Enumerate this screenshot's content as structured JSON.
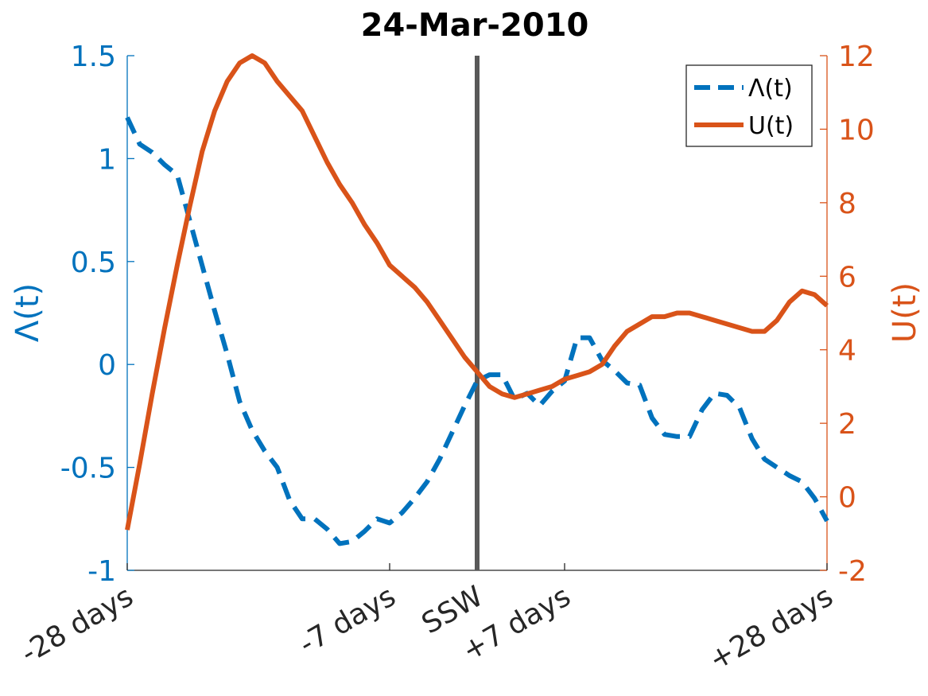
{
  "chart_data": {
    "type": "line",
    "title": "24-Mar-2010",
    "x_ticks": [
      {
        "x": -28,
        "label": "-28 days"
      },
      {
        "x": -7,
        "label": "-7 days"
      },
      {
        "x": 0,
        "label": "SSW"
      },
      {
        "x": 7,
        "label": "+7 days"
      },
      {
        "x": 28,
        "label": "+28 days"
      }
    ],
    "xlim": [
      -28,
      28
    ],
    "y_left": {
      "label": "Λ(t)",
      "lim": [
        -1,
        1.5
      ],
      "ticks": [
        -1,
        -0.5,
        0,
        0.5,
        1,
        1.5
      ],
      "tick_labels": [
        "-1",
        "-0.5",
        "0",
        "0.5",
        "1",
        "1.5"
      ],
      "color": "#0072BD"
    },
    "y_right": {
      "label": "U(t)",
      "lim": [
        -2,
        12
      ],
      "ticks": [
        -2,
        0,
        2,
        4,
        6,
        8,
        10,
        12
      ],
      "tick_labels": [
        "-2",
        "0",
        "2",
        "4",
        "6",
        "8",
        "10",
        "12"
      ],
      "color": "#D95319"
    },
    "vertical_line": {
      "x": 0,
      "color": "#595959"
    },
    "legend_position": "top-right",
    "grid": false,
    "series": [
      {
        "name": "Λ(t)",
        "axis": "left",
        "style": "dashed",
        "color": "#0072BD",
        "x": [
          -28,
          -27,
          -26,
          -25,
          -24,
          -23,
          -22,
          -21,
          -20,
          -19,
          -18,
          -17,
          -16,
          -15,
          -14,
          -13,
          -12,
          -11,
          -10,
          -9,
          -8,
          -7,
          -6,
          -5,
          -4,
          -3,
          -2,
          -1,
          0,
          1,
          2,
          3,
          4,
          5,
          6,
          7,
          8,
          9,
          10,
          11,
          12,
          13,
          14,
          15,
          16,
          17,
          18,
          19,
          20,
          21,
          22,
          23,
          24,
          25,
          26,
          27,
          28
        ],
        "y": [
          1.2,
          1.07,
          1.03,
          0.97,
          0.92,
          0.7,
          0.48,
          0.26,
          0.05,
          -0.18,
          -0.32,
          -0.42,
          -0.5,
          -0.66,
          -0.75,
          -0.75,
          -0.8,
          -0.87,
          -0.86,
          -0.81,
          -0.75,
          -0.77,
          -0.72,
          -0.65,
          -0.57,
          -0.46,
          -0.33,
          -0.2,
          -0.08,
          -0.05,
          -0.05,
          -0.17,
          -0.14,
          -0.2,
          -0.13,
          -0.08,
          0.13,
          0.13,
          0.02,
          -0.03,
          -0.09,
          -0.1,
          -0.26,
          -0.34,
          -0.35,
          -0.35,
          -0.22,
          -0.14,
          -0.15,
          -0.21,
          -0.36,
          -0.46,
          -0.5,
          -0.54,
          -0.57,
          -0.65,
          -0.76
        ]
      },
      {
        "name": "U(t)",
        "axis": "right",
        "style": "solid",
        "color": "#D95319",
        "x": [
          -28,
          -27,
          -26,
          -25,
          -24,
          -23,
          -22,
          -21,
          -20,
          -19,
          -18,
          -17,
          -16,
          -15,
          -14,
          -13,
          -12,
          -11,
          -10,
          -9,
          -8,
          -7,
          -6,
          -5,
          -4,
          -3,
          -2,
          -1,
          0,
          1,
          2,
          3,
          4,
          5,
          6,
          7,
          8,
          9,
          10,
          11,
          12,
          13,
          14,
          15,
          16,
          17,
          18,
          19,
          20,
          21,
          22,
          23,
          24,
          25,
          26,
          27,
          28
        ],
        "y": [
          -0.9,
          0.9,
          2.8,
          4.6,
          6.3,
          7.9,
          9.4,
          10.5,
          11.3,
          11.8,
          12.0,
          11.8,
          11.3,
          10.9,
          10.5,
          9.8,
          9.1,
          8.5,
          8.0,
          7.4,
          6.9,
          6.3,
          6.0,
          5.7,
          5.3,
          4.8,
          4.3,
          3.8,
          3.4,
          3.0,
          2.8,
          2.7,
          2.8,
          2.9,
          3.0,
          3.2,
          3.3,
          3.4,
          3.6,
          4.1,
          4.5,
          4.7,
          4.9,
          4.9,
          5.0,
          5.0,
          4.9,
          4.8,
          4.7,
          4.6,
          4.5,
          4.5,
          4.8,
          5.3,
          5.6,
          5.5,
          5.2
        ]
      }
    ]
  }
}
